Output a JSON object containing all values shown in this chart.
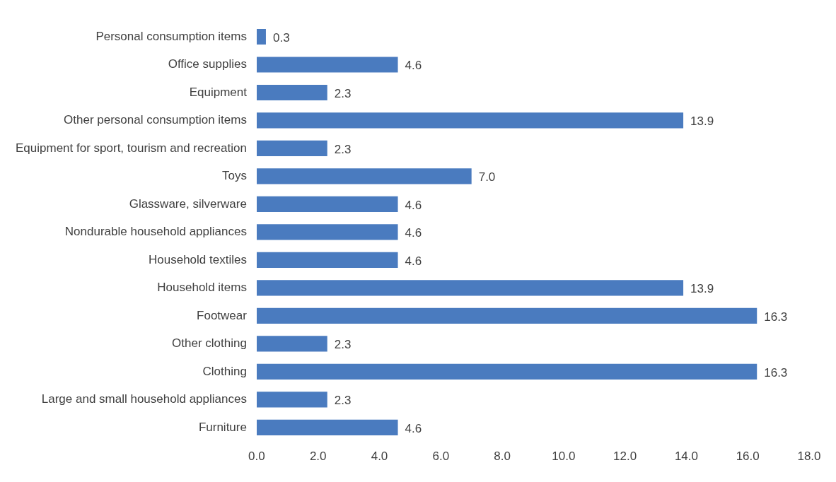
{
  "chart_data": {
    "type": "bar",
    "orientation": "horizontal",
    "categories": [
      "Personal consumption items",
      "Office supplies",
      "Equipment",
      "Other personal consumption items",
      "Equipment for sport, tourism and recreation",
      "Toys",
      "Glassware, silverware",
      "Nondurable household appliances",
      "Household textiles",
      "Household items",
      "Footwear",
      "Other clothing",
      "Clothing",
      "Large and small household appliances",
      "Furniture"
    ],
    "values": [
      0.3,
      4.6,
      2.3,
      13.9,
      2.3,
      7.0,
      4.6,
      4.6,
      4.6,
      13.9,
      16.3,
      2.3,
      16.3,
      2.3,
      4.6
    ],
    "value_labels": [
      "0.3",
      "4.6",
      "2.3",
      "13.9",
      "2.3",
      "7.0",
      "4.6",
      "4.6",
      "4.6",
      "13.9",
      "16.3",
      "2.3",
      "16.3",
      "2.3",
      "4.6"
    ],
    "color": "#4a7bbf",
    "xlim": [
      0,
      18
    ],
    "xticks": [
      {
        "value": 0,
        "label": "0.0"
      },
      {
        "value": 2,
        "label": "2.0"
      },
      {
        "value": 4,
        "label": "4.0"
      },
      {
        "value": 6,
        "label": "6.0"
      },
      {
        "value": 8,
        "label": "8.0"
      },
      {
        "value": 10,
        "label": "10.0"
      },
      {
        "value": 12,
        "label": "12.0"
      },
      {
        "value": 14,
        "label": "14.0"
      },
      {
        "value": 16,
        "label": "16.0"
      },
      {
        "value": 18,
        "label": "18.0"
      }
    ],
    "grid": false,
    "legend": false
  }
}
